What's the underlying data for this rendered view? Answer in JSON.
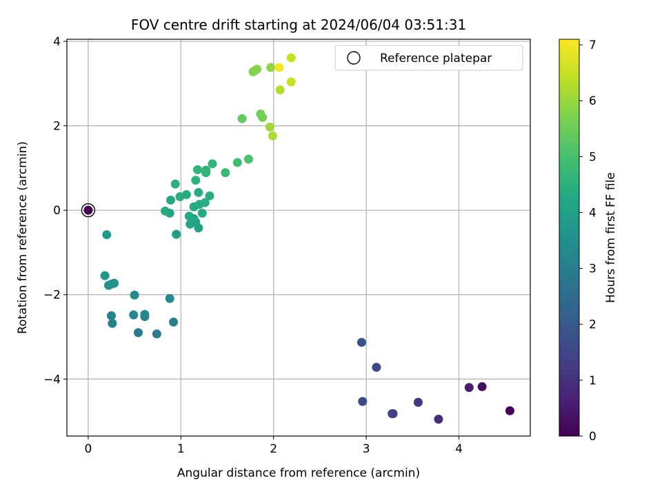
{
  "chart_data": {
    "type": "scatter",
    "title": "FOV centre drift starting at 2024/06/04 03:51:31",
    "xlabel": "Angular distance from reference (arcmin)",
    "ylabel": "Rotation from reference (arcmin)",
    "xlim": [
      -0.23,
      4.77
    ],
    "ylim": [
      -5.35,
      4.05
    ],
    "xticks": [
      0,
      1,
      2,
      3,
      4
    ],
    "xtick_labels": [
      "0",
      "1",
      "2",
      "3",
      "4"
    ],
    "yticks": [
      -4,
      -2,
      0,
      2,
      4
    ],
    "ytick_labels": [
      "−4",
      "−2",
      "0",
      "2",
      "4"
    ],
    "grid": true,
    "legend": {
      "position": "top-right",
      "entries": [
        "Reference platepar"
      ]
    },
    "colorbar": {
      "label": "Hours from first FF file",
      "range": [
        0,
        7.1
      ],
      "ticks": [
        0,
        1,
        2,
        3,
        4,
        5,
        6,
        7
      ],
      "tick_labels": [
        "0",
        "1",
        "2",
        "3",
        "4",
        "5",
        "6",
        "7"
      ],
      "colormap": "viridis"
    },
    "reference_point": {
      "x": 0,
      "y": 0,
      "hours": 0
    },
    "points": [
      {
        "x": 4.55,
        "y": -4.75,
        "hours": 0.05
      },
      {
        "x": 4.25,
        "y": -4.18,
        "hours": 0.25
      },
      {
        "x": 4.11,
        "y": -4.2,
        "hours": 0.6
      },
      {
        "x": 3.78,
        "y": -4.95,
        "hours": 0.9
      },
      {
        "x": 3.56,
        "y": -4.55,
        "hours": 1.1
      },
      {
        "x": 3.28,
        "y": -4.82,
        "hours": 1.3
      },
      {
        "x": 3.29,
        "y": -4.82,
        "hours": 1.35
      },
      {
        "x": 3.11,
        "y": -3.72,
        "hours": 1.5
      },
      {
        "x": 2.96,
        "y": -4.53,
        "hours": 1.6
      },
      {
        "x": 2.95,
        "y": -3.13,
        "hours": 1.75
      },
      {
        "x": 0.74,
        "y": -2.93,
        "hours": 2.95
      },
      {
        "x": 0.54,
        "y": -2.9,
        "hours": 3.0
      },
      {
        "x": 0.26,
        "y": -2.68,
        "hours": 3.05
      },
      {
        "x": 0.92,
        "y": -2.65,
        "hours": 3.1
      },
      {
        "x": 0.61,
        "y": -2.52,
        "hours": 3.15
      },
      {
        "x": 0.25,
        "y": -2.5,
        "hours": 3.2
      },
      {
        "x": 0.49,
        "y": -2.48,
        "hours": 3.25
      },
      {
        "x": 0.61,
        "y": -2.47,
        "hours": 3.3
      },
      {
        "x": 0.88,
        "y": -2.09,
        "hours": 3.35
      },
      {
        "x": 0.5,
        "y": -2.01,
        "hours": 3.4
      },
      {
        "x": 0.22,
        "y": -1.78,
        "hours": 3.5
      },
      {
        "x": 0.28,
        "y": -1.73,
        "hours": 3.55
      },
      {
        "x": 0.25,
        "y": -1.75,
        "hours": 3.6
      },
      {
        "x": 0.18,
        "y": -1.55,
        "hours": 3.7
      },
      {
        "x": 0.2,
        "y": -0.58,
        "hours": 3.8
      },
      {
        "x": 0.95,
        "y": -0.57,
        "hours": 4.0
      },
      {
        "x": 1.19,
        "y": -0.42,
        "hours": 4.05
      },
      {
        "x": 1.1,
        "y": -0.33,
        "hours": 4.1
      },
      {
        "x": 1.16,
        "y": -0.28,
        "hours": 4.15
      },
      {
        "x": 1.14,
        "y": -0.2,
        "hours": 4.2
      },
      {
        "x": 1.09,
        "y": -0.14,
        "hours": 4.25
      },
      {
        "x": 0.88,
        "y": -0.07,
        "hours": 4.2
      },
      {
        "x": 1.23,
        "y": -0.07,
        "hours": 4.3
      },
      {
        "x": 0.83,
        "y": -0.02,
        "hours": 4.35
      },
      {
        "x": 1.14,
        "y": 0.08,
        "hours": 4.3
      },
      {
        "x": 1.2,
        "y": 0.14,
        "hours": 4.35
      },
      {
        "x": 1.26,
        "y": 0.18,
        "hours": 4.4
      },
      {
        "x": 0.89,
        "y": 0.24,
        "hours": 4.3
      },
      {
        "x": 0.99,
        "y": 0.32,
        "hours": 4.4
      },
      {
        "x": 1.06,
        "y": 0.37,
        "hours": 4.35
      },
      {
        "x": 1.31,
        "y": 0.34,
        "hours": 4.45
      },
      {
        "x": 1.19,
        "y": 0.42,
        "hours": 4.4
      },
      {
        "x": 0.94,
        "y": 0.62,
        "hours": 4.5
      },
      {
        "x": 1.16,
        "y": 0.71,
        "hours": 4.5
      },
      {
        "x": 1.27,
        "y": 0.89,
        "hours": 4.55
      },
      {
        "x": 1.27,
        "y": 0.95,
        "hours": 4.6
      },
      {
        "x": 1.18,
        "y": 0.96,
        "hours": 4.6
      },
      {
        "x": 1.34,
        "y": 1.1,
        "hours": 4.6
      },
      {
        "x": 1.48,
        "y": 0.89,
        "hours": 4.75
      },
      {
        "x": 1.61,
        "y": 1.13,
        "hours": 4.9
      },
      {
        "x": 1.73,
        "y": 1.21,
        "hours": 5.05
      },
      {
        "x": 1.66,
        "y": 2.17,
        "hours": 5.35
      },
      {
        "x": 1.86,
        "y": 2.28,
        "hours": 5.55
      },
      {
        "x": 1.88,
        "y": 2.2,
        "hours": 5.6
      },
      {
        "x": 1.78,
        "y": 3.28,
        "hours": 5.7
      },
      {
        "x": 1.8,
        "y": 3.31,
        "hours": 5.75
      },
      {
        "x": 1.82,
        "y": 3.34,
        "hours": 5.8
      },
      {
        "x": 1.96,
        "y": 1.97,
        "hours": 6.1
      },
      {
        "x": 1.97,
        "y": 3.38,
        "hours": 5.9
      },
      {
        "x": 1.99,
        "y": 1.76,
        "hours": 6.2
      },
      {
        "x": 2.07,
        "y": 2.85,
        "hours": 6.3
      },
      {
        "x": 2.19,
        "y": 3.04,
        "hours": 6.5
      },
      {
        "x": 2.19,
        "y": 3.61,
        "hours": 6.5
      },
      {
        "x": 2.06,
        "y": 3.38,
        "hours": 7.0
      }
    ]
  }
}
